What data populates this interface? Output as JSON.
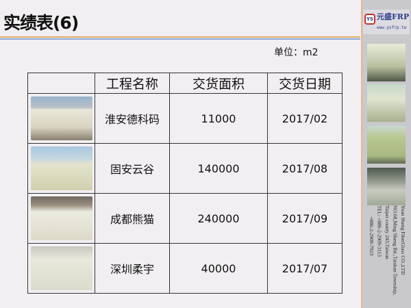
{
  "title": "实绩表(6)",
  "unit": "单位：m2",
  "table": {
    "headers": [
      "",
      "工程名称",
      "交货面积",
      "交货日期"
    ],
    "rows": [
      {
        "name": "淮安德科码",
        "area": "11000",
        "date": "2017/02"
      },
      {
        "name": "固安云谷",
        "area": "140000",
        "date": "2017/08"
      },
      {
        "name": "成都熊猫",
        "area": "240000",
        "date": "2017/09"
      },
      {
        "name": "深圳柔宇",
        "area": "40000",
        "date": "2017/07"
      }
    ]
  },
  "logo": {
    "mark": "YS",
    "name": "元盛FRP",
    "url": "www.ysfrp.tw"
  },
  "address": [
    "Yuan Sheng FiberGlass CO.,LTD",
    "NO.68,Ming Sheng Rd.,Taishan Township,",
    "Taipei county 243,Taiwan",
    "TEL: +886-2-2909-3113",
    "+886-2-2909-7923"
  ],
  "colors": {
    "accent_orange": "#e0a868",
    "accent_blue": "#8aa8d8",
    "brand": "#2a3a8a"
  }
}
